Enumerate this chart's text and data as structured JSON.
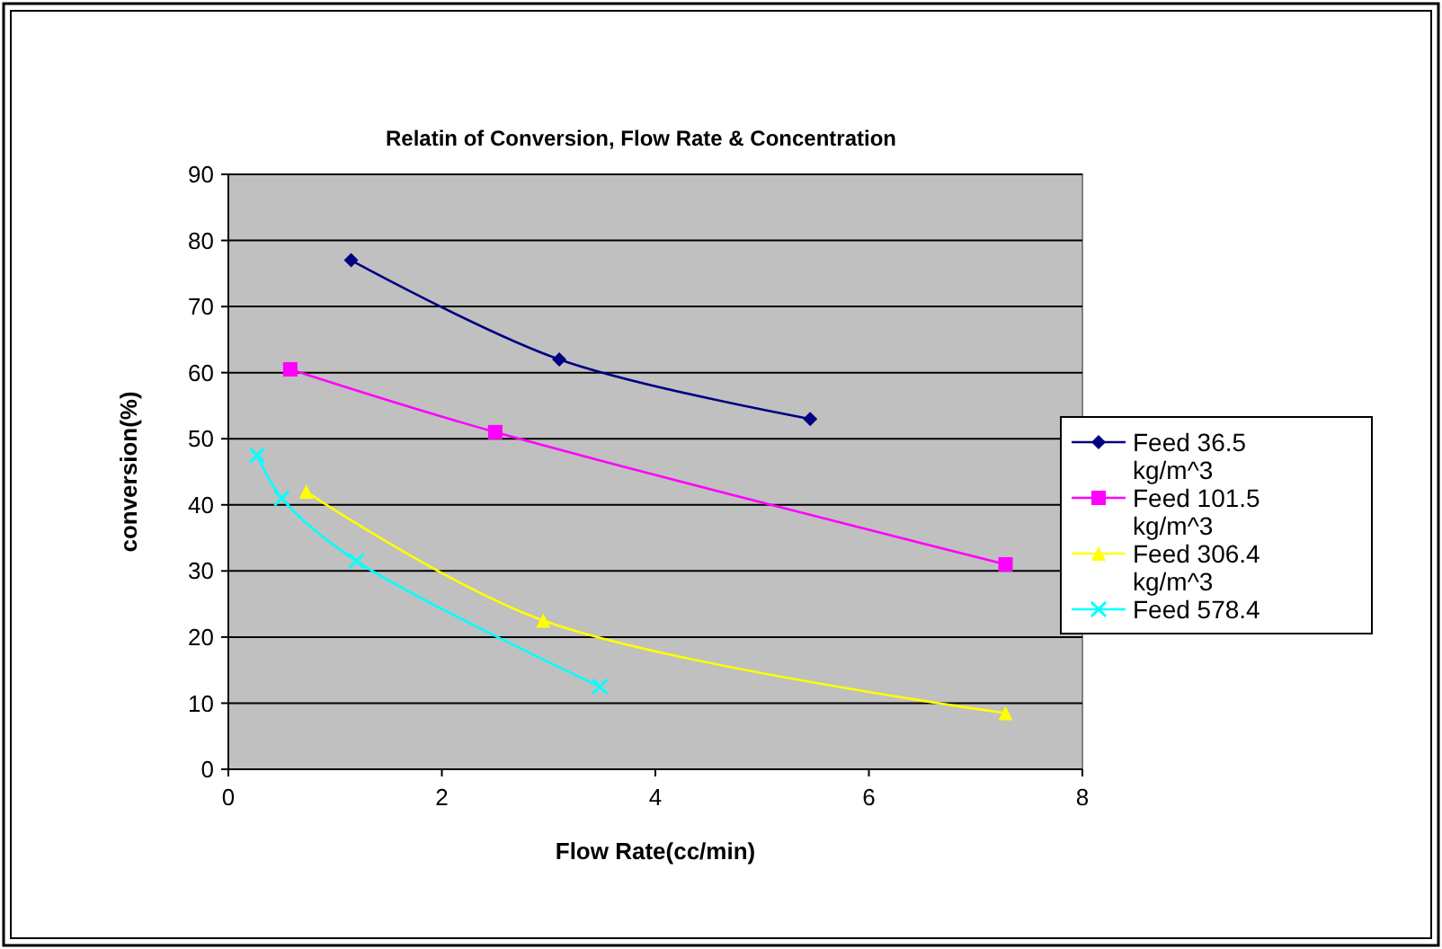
{
  "chart_data": {
    "type": "line",
    "title": "Relatin of Conversion, Flow Rate & Concentration",
    "xlabel": "Flow Rate(cc/min)",
    "ylabel": "conversion(%)",
    "xlim": [
      0,
      8
    ],
    "xticks": [
      0,
      2,
      4,
      6,
      8
    ],
    "ylim": [
      0,
      90
    ],
    "yticks": [
      0,
      10,
      20,
      30,
      40,
      50,
      60,
      70,
      80,
      90
    ],
    "grid": "y",
    "legend": "right",
    "series": [
      {
        "name": "Feed 36.5 kg/m^3",
        "color": "#000080",
        "marker": "diamond",
        "x": [
          1.15,
          3.1,
          5.45
        ],
        "values": [
          77,
          62,
          53
        ]
      },
      {
        "name": "Feed 101.5 kg/m^3",
        "color": "#ff00ff",
        "marker": "square",
        "x": [
          0.58,
          2.5,
          7.28
        ],
        "values": [
          60.5,
          51,
          31
        ]
      },
      {
        "name": "Feed 306.4 kg/m^3",
        "color": "#ffff00",
        "marker": "triangle",
        "x": [
          0.73,
          2.95,
          7.28
        ],
        "values": [
          42,
          22.5,
          8.5
        ]
      },
      {
        "name": "Feed 578.4",
        "color": "#00ffff",
        "marker": "cross",
        "x": [
          0.27,
          0.5,
          1.2,
          3.48
        ],
        "values": [
          47.5,
          41,
          31.5,
          12.5
        ]
      }
    ]
  }
}
